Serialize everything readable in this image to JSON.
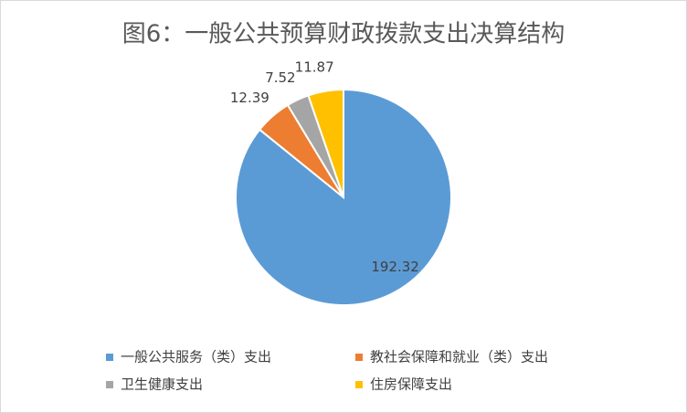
{
  "chart_data": {
    "type": "pie",
    "title": "图6：一般公共预算财政拨款支出决算结构",
    "categories": [
      "一般公共服务（类）支出",
      "教社会保障和就业（类）支出",
      "卫生健康支出",
      "住房保障支出"
    ],
    "values": [
      192.32,
      12.39,
      7.52,
      11.87
    ],
    "colors": [
      "#5b9bd5",
      "#ed7d31",
      "#a5a5a5",
      "#ffc000"
    ],
    "legend": "bottom"
  }
}
